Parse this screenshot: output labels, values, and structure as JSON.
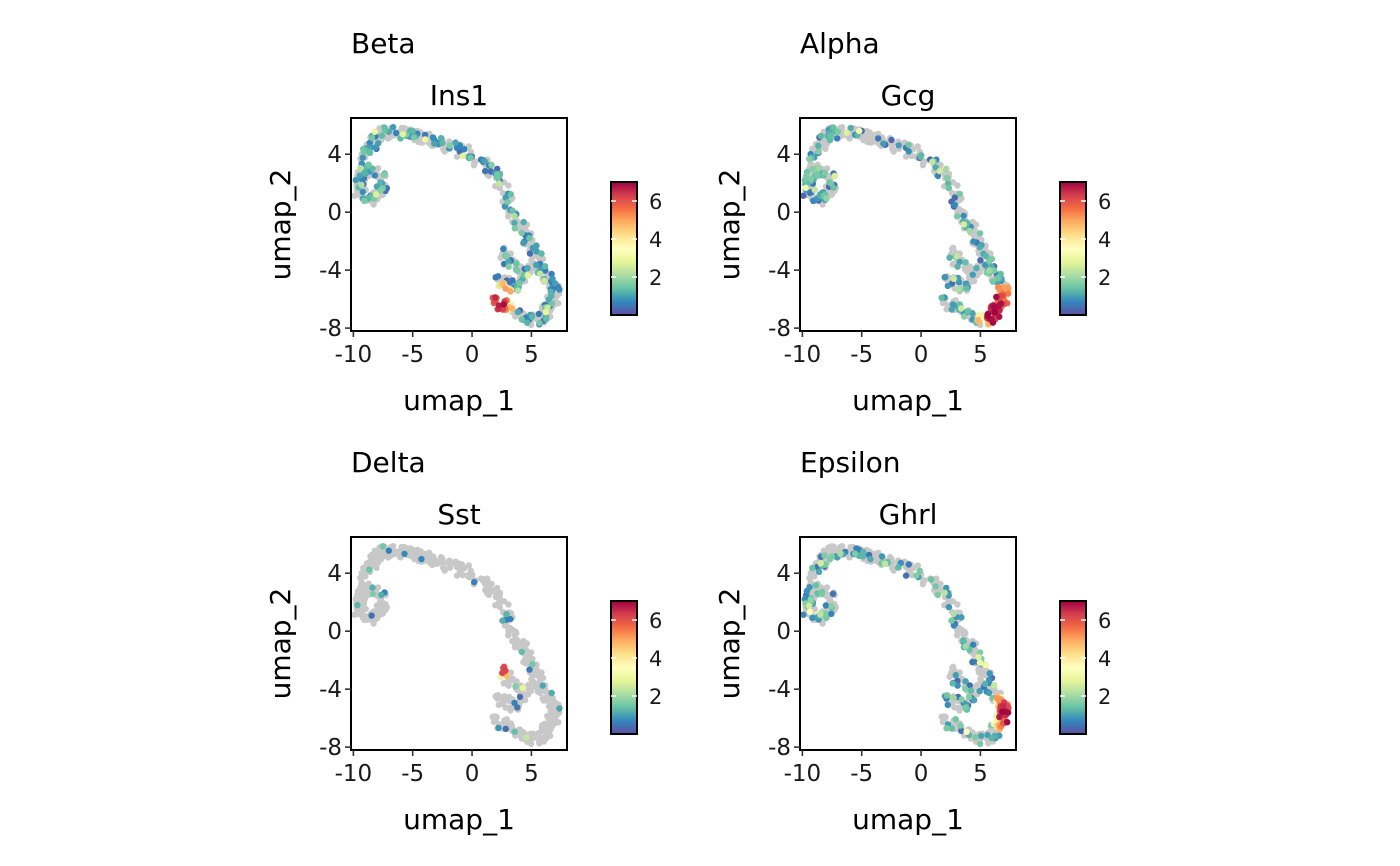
{
  "colors": {
    "background_points": "#c8c8c8",
    "scale": [
      "#5e4fa2",
      "#3288bd",
      "#66c2a5",
      "#abdda4",
      "#e6f598",
      "#ffffbf",
      "#fee08b",
      "#fdae61",
      "#f46d43",
      "#d53e4f",
      "#9e0142"
    ]
  },
  "chart_data": [
    {
      "type": "scatter",
      "tag": "Beta",
      "title": "Ins1",
      "xlabel": "umap_1",
      "ylabel": "umap_2",
      "xlim": [
        -10.2,
        8.0
      ],
      "ylim": [
        -8.2,
        6.5
      ],
      "xticks": [
        -10,
        -5,
        0,
        5
      ],
      "xtick_labels": [
        "-10",
        "-5",
        "0",
        "5"
      ],
      "yticks": [
        -8,
        -4,
        0,
        4
      ],
      "ytick_labels": [
        "-8",
        "-4",
        "0",
        "4"
      ],
      "legend": {
        "placement": "right",
        "range": [
          0,
          7
        ],
        "ticks": [
          2,
          4,
          6
        ],
        "tick_labels": [
          "2",
          "4",
          "6"
        ]
      },
      "hotspot": {
        "x": 2.3,
        "y": -6.0,
        "radius": 0.8
      },
      "expressing_fraction": 0.36,
      "grid": false
    },
    {
      "type": "scatter",
      "tag": "Alpha",
      "title": "Gcg",
      "xlabel": "umap_1",
      "ylabel": "umap_2",
      "xlim": [
        -10.2,
        8.0
      ],
      "ylim": [
        -8.2,
        6.5
      ],
      "xticks": [
        -10,
        -5,
        0,
        5
      ],
      "xtick_labels": [
        "-10",
        "-5",
        "0",
        "5"
      ],
      "yticks": [
        -8,
        -4,
        0,
        4
      ],
      "ytick_labels": [
        "-8",
        "-4",
        "0",
        "4"
      ],
      "legend": {
        "placement": "right",
        "range": [
          0,
          7
        ],
        "ticks": [
          2,
          4,
          6
        ],
        "tick_labels": [
          "2",
          "4",
          "6"
        ]
      },
      "hotspot": {
        "x": 6.3,
        "y": -6.6,
        "radius": 1.1
      },
      "expressing_fraction": 0.34,
      "grid": false
    },
    {
      "type": "scatter",
      "tag": "Delta",
      "title": "Sst",
      "xlabel": "umap_1",
      "ylabel": "umap_2",
      "xlim": [
        -10.2,
        8.0
      ],
      "ylim": [
        -8.2,
        6.5
      ],
      "xticks": [
        -10,
        -5,
        0,
        5
      ],
      "xtick_labels": [
        "-10",
        "-5",
        "0",
        "5"
      ],
      "yticks": [
        -8,
        -4,
        0,
        4
      ],
      "ytick_labels": [
        "-8",
        "-4",
        "0",
        "4"
      ],
      "legend": {
        "placement": "right",
        "range": [
          0,
          7
        ],
        "ticks": [
          2,
          4,
          6
        ],
        "tick_labels": [
          "2",
          "4",
          "6"
        ]
      },
      "hotspot": {
        "x": 2.4,
        "y": -2.4,
        "radius": 0.55
      },
      "expressing_fraction": 0.06,
      "grid": false
    },
    {
      "type": "scatter",
      "tag": "Epsilon",
      "title": "Ghrl",
      "xlabel": "umap_1",
      "ylabel": "umap_2",
      "xlim": [
        -10.2,
        8.0
      ],
      "ylim": [
        -8.2,
        6.5
      ],
      "xticks": [
        -10,
        -5,
        0,
        5
      ],
      "xtick_labels": [
        "-10",
        "-5",
        "0",
        "5"
      ],
      "yticks": [
        -8,
        -4,
        0,
        4
      ],
      "ytick_labels": [
        "-8",
        "-4",
        "0",
        "4"
      ],
      "legend": {
        "placement": "right",
        "range": [
          0,
          7
        ],
        "ticks": [
          2,
          4,
          6
        ],
        "tick_labels": [
          "2",
          "4",
          "6"
        ]
      },
      "hotspot": {
        "x": 7.3,
        "y": -5.6,
        "radius": 0.9
      },
      "expressing_fraction": 0.3,
      "grid": false
    }
  ]
}
